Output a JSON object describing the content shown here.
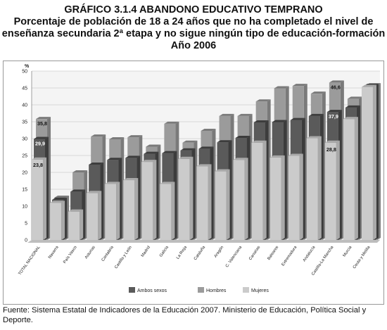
{
  "header": {
    "line1": "GRÁFICO 3.1.4 ABANDONO EDUCATIVO TEMPRANO",
    "line2": "Porcentaje de población de 18 a 24 años que no ha completado el nivel de",
    "line3": "enseñanza secundaria 2ª etapa y no sigue ningún tipo de educación-formación",
    "line4": "Año 2006"
  },
  "source": "Fuente: Sistema Estatal de Indicadores de la Educación 2007. Ministerio de Educación, Política Social y Deporte.",
  "colors": {
    "ambos": "#5a5a5a",
    "ambos_side": "#3c3c3c",
    "hombres": "#9b9b9b",
    "hombres_side": "#7a7a7a",
    "mujeres": "#cbcbcb",
    "mujeres_side": "#a9a9a9",
    "floor": "#bdbdbd",
    "wall": "#f4f4f4",
    "grid": "#cfcfcf"
  },
  "chart_data": {
    "type": "bar",
    "title": "",
    "xlabel": "",
    "ylabel": "%",
    "ylim": [
      0,
      50
    ],
    "yticks": [
      0,
      5,
      10,
      15,
      20,
      25,
      30,
      35,
      40,
      45,
      50
    ],
    "grid": true,
    "legend_position": "bottom",
    "categories": [
      "TOTAL NACIONAL",
      "Navarra",
      "País Vasco",
      "Asturias",
      "Cantabria",
      "Castilla y León",
      "Madrid",
      "Galicia",
      "La Rioja",
      "Cataluña",
      "Aragón",
      "C. Valenciana",
      "Canarias",
      "Baleares",
      "Extremadura",
      "Andalucía",
      "Castilla-La Mancha",
      "Murcia",
      "Ceuta y Melilla"
    ],
    "series": [
      {
        "name": "Hombres",
        "values": [
          35.8,
          12.5,
          20.0,
          30.6,
          29.8,
          30.4,
          27.6,
          34.4,
          28.8,
          32.3,
          36.7,
          36.7,
          41.0,
          44.9,
          45.6,
          43.3,
          46.6,
          41.8,
          45.8
        ]
      },
      {
        "name": "Ambos sexos",
        "values": [
          29.9,
          11.9,
          14.3,
          22.3,
          23.7,
          24.3,
          25.5,
          25.7,
          26.5,
          27.0,
          28.9,
          30.2,
          34.8,
          34.9,
          35.5,
          36.7,
          37.9,
          39.2,
          45.6
        ]
      },
      {
        "name": "Mujeres",
        "values": [
          23.8,
          11.0,
          8.4,
          13.9,
          16.6,
          17.7,
          23.1,
          16.6,
          24.0,
          21.8,
          20.3,
          23.7,
          28.8,
          24.4,
          24.9,
          30.1,
          28.8,
          35.8,
          45.3
        ]
      }
    ],
    "data_labels": [
      {
        "category": "TOTAL NACIONAL",
        "series": "Hombres",
        "text": "35,8"
      },
      {
        "category": "TOTAL NACIONAL",
        "series": "Ambos sexos",
        "text": "29,9"
      },
      {
        "category": "TOTAL NACIONAL",
        "series": "Mujeres",
        "text": "23,8"
      },
      {
        "category": "Castilla-La Mancha",
        "series": "Hombres",
        "text": "46,6"
      },
      {
        "category": "Castilla-La Mancha",
        "series": "Ambos sexos",
        "text": "37,9"
      },
      {
        "category": "Castilla-La Mancha",
        "series": "Mujeres",
        "text": "28,8"
      }
    ],
    "legend": [
      "Ambos sexos",
      "Hombres",
      "Mujeres"
    ]
  }
}
